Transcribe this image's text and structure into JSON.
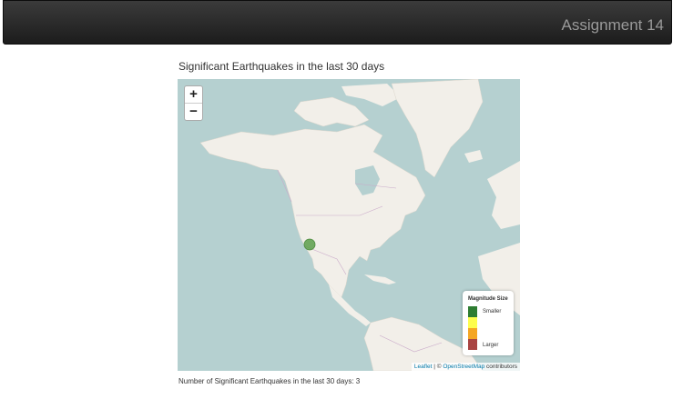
{
  "navbar": {
    "title": "Assignment 14"
  },
  "page": {
    "heading": "Significant Earthquakes in the last 30 days",
    "footer_text": "Number of Significant Earthquakes in the last 30 days: 3"
  },
  "map": {
    "zoom_in_label": "+",
    "zoom_out_label": "−",
    "legend": {
      "title": "Magnitude Size",
      "smaller_label": "Smaller",
      "larger_label": "Larger",
      "colors": [
        "#2e7d32",
        "#fdfd4d",
        "#f5a623",
        "#a94442"
      ]
    },
    "attribution": {
      "leaflet": "Leaflet",
      "separator": " | © ",
      "osm": "OpenStreetMap",
      "suffix": " contributors"
    },
    "colors": {
      "water": "#b5d0d0",
      "land": "#f2efe9",
      "marker": "#5a9e4a"
    }
  }
}
